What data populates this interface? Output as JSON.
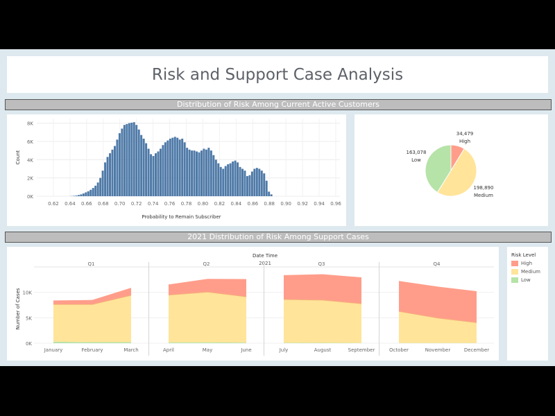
{
  "dashboard": {
    "title": "Risk and Support Case Analysis",
    "section1_title": "Distribution of Risk Among Current Active Customers",
    "section2_title": "2021 Distribution of Risk Among Support Cases"
  },
  "colors": {
    "bar": "#4e79a7",
    "high": "#ff9d8a",
    "medium": "#ffe49a",
    "low": "#b6e3a8"
  },
  "legend": {
    "title": "Risk Level",
    "items": [
      "High",
      "Medium",
      "Low"
    ]
  },
  "chart_data": [
    {
      "type": "bar",
      "xlabel": "Probability to Remain Subscriber",
      "ylabel": "Count",
      "xlim": [
        0.6,
        0.965
      ],
      "ylim": [
        0,
        8500
      ],
      "x_ticks": [
        0.62,
        0.64,
        0.66,
        0.68,
        0.7,
        0.72,
        0.74,
        0.76,
        0.78,
        0.8,
        0.82,
        0.84,
        0.86,
        0.88,
        0.9,
        0.92,
        0.94,
        0.96
      ],
      "x_tick_labels": [
        "0.62",
        "0.64",
        "0.66",
        "0.68",
        "0.70",
        "0.72",
        "0.74",
        "0.76",
        "0.78",
        "0.80",
        "0.82",
        "0.84",
        "0.86",
        "0.88",
        "0.90",
        "0.92",
        "0.94",
        "0.96"
      ],
      "y_ticks": [
        0,
        2000,
        4000,
        6000,
        8000
      ],
      "y_tick_labels": [
        "0K",
        "2K",
        "4K",
        "6K",
        "8K"
      ],
      "bin_start": 0.6405,
      "bin_width": 0.0029,
      "values": [
        20,
        40,
        70,
        130,
        200,
        300,
        420,
        540,
        700,
        900,
        1150,
        1500,
        2000,
        2800,
        3700,
        4300,
        4700,
        5100,
        5500,
        6200,
        6900,
        7400,
        7800,
        7900,
        8000,
        8050,
        8100,
        7800,
        7300,
        6700,
        6300,
        5800,
        5200,
        4600,
        4400,
        4700,
        4900,
        5200,
        5600,
        5900,
        6100,
        6300,
        6400,
        6500,
        6400,
        6200,
        6300,
        5900,
        5300,
        5100,
        5000,
        5000,
        4900,
        4800,
        5000,
        5200,
        5100,
        5300,
        5000,
        4500,
        4000,
        3600,
        3200,
        3000,
        3300,
        3500,
        3600,
        3800,
        3900,
        3700,
        3200,
        3000,
        2800,
        2200,
        2300,
        2700,
        3000,
        3100,
        3000,
        2800,
        2500,
        1700,
        500,
        200
      ]
    },
    {
      "type": "pie",
      "slices": [
        {
          "label": "High",
          "value": 34479,
          "value_label": "34,479"
        },
        {
          "label": "Medium",
          "value": 198890,
          "value_label": "198,890"
        },
        {
          "label": "Low",
          "value": 163078,
          "value_label": "163,078"
        }
      ]
    },
    {
      "type": "area",
      "stacked": true,
      "title": "Date Time",
      "subtitle": "2021",
      "ylabel": "Number of Cases",
      "ylim": [
        0,
        13500
      ],
      "y_ticks": [
        0,
        5000,
        10000
      ],
      "y_tick_labels": [
        "0K",
        "5K",
        "10K"
      ],
      "quarters": [
        {
          "label": "Q1",
          "months": [
            "January",
            "February",
            "March"
          ],
          "low": [
            300,
            200,
            200
          ],
          "medium": [
            7300,
            7400,
            9200
          ],
          "high": [
            800,
            900,
            1500
          ]
        },
        {
          "label": "Q2",
          "months": [
            "April",
            "May",
            "June"
          ],
          "low": [
            150,
            150,
            120
          ],
          "medium": [
            9300,
            9900,
            9000
          ],
          "high": [
            2100,
            2600,
            3500
          ]
        },
        {
          "label": "Q3",
          "months": [
            "July",
            "August",
            "September"
          ],
          "low": [
            80,
            60,
            50
          ],
          "medium": [
            8500,
            8400,
            7700
          ],
          "high": [
            4800,
            5100,
            5200
          ]
        },
        {
          "label": "Q4",
          "months": [
            "October",
            "November",
            "December"
          ],
          "low": [
            40,
            30,
            30
          ],
          "medium": [
            6200,
            4900,
            4000
          ],
          "high": [
            6000,
            6200,
            6200
          ]
        }
      ]
    }
  ]
}
